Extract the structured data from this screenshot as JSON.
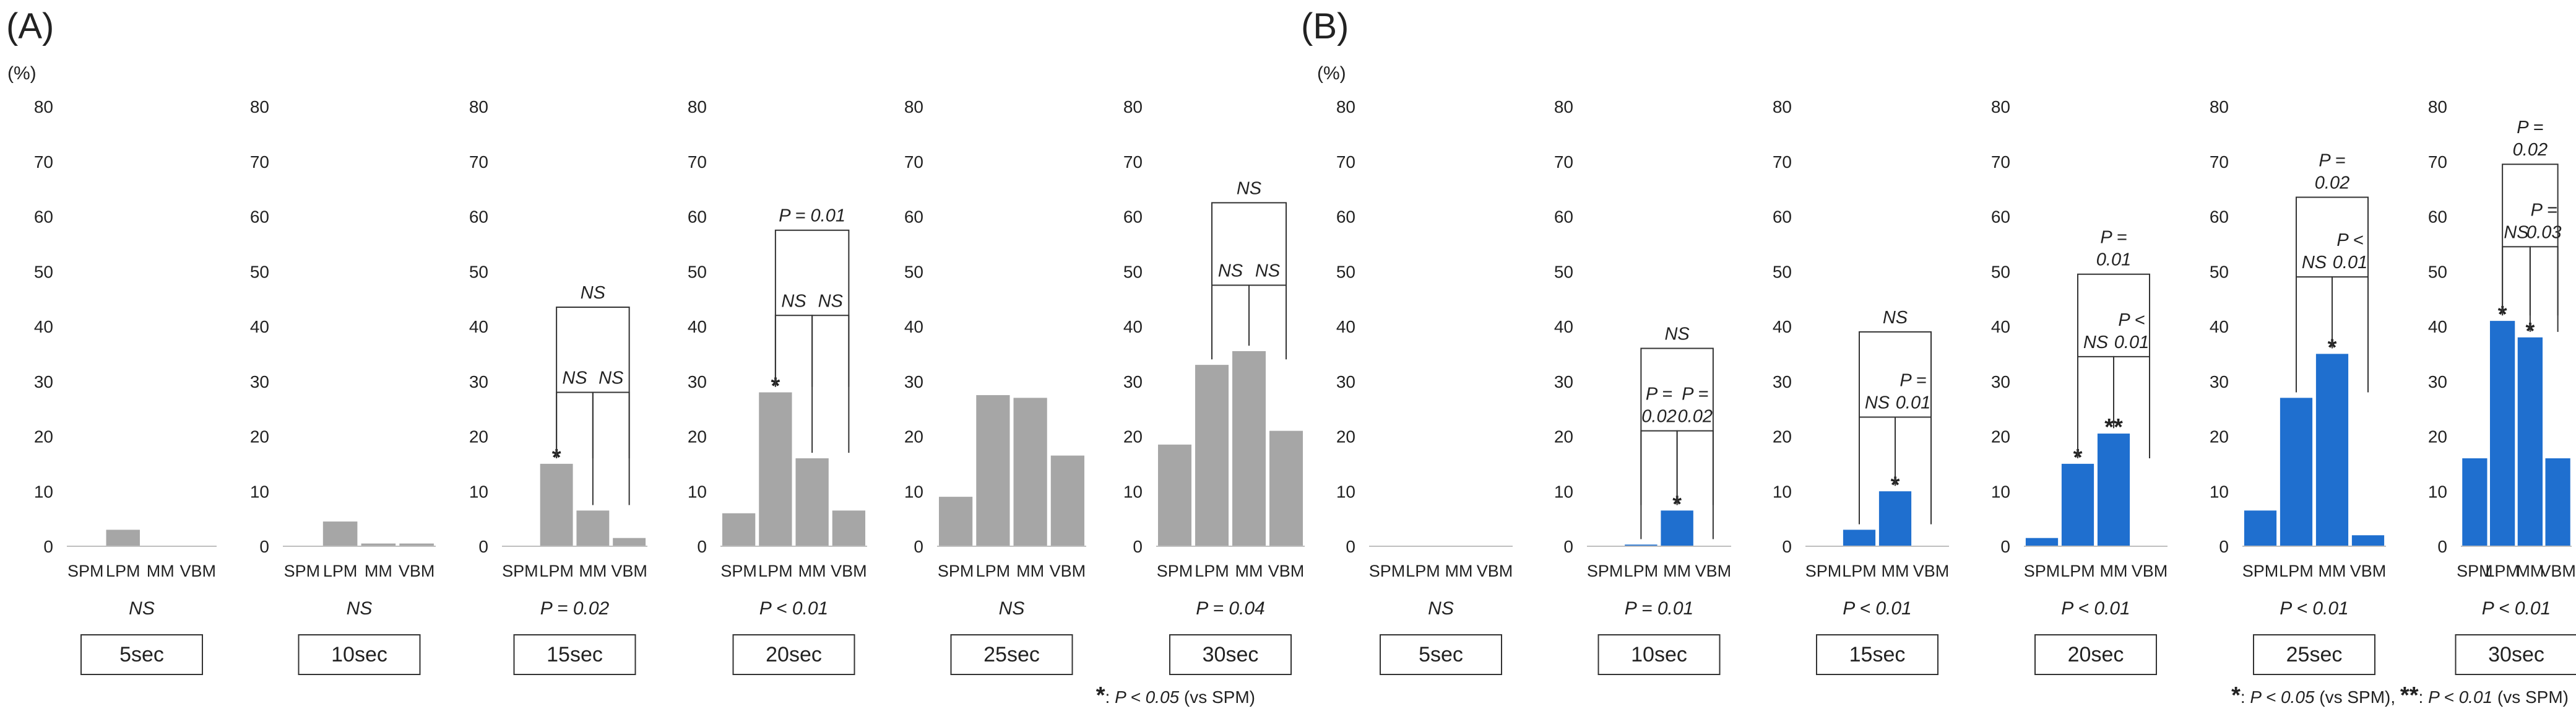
{
  "figure": {
    "yunit": "(%)",
    "ylim": [
      0,
      80
    ],
    "yticks": [
      0,
      10,
      20,
      30,
      40,
      50,
      60,
      70,
      80
    ]
  },
  "chart_data": [
    {
      "panel_label": "(A)",
      "type": "bar",
      "categories": [
        "SPM",
        "LPM",
        "MM",
        "VBM"
      ],
      "bar_color": "#a6a6a6",
      "legend": {
        "marker": "*",
        "sep": ": ",
        "text": "P < 0.05",
        "suffix": " (vs SPM)"
      },
      "charts": [
        {
          "title": "5sec",
          "values": [
            0,
            3,
            0,
            0
          ],
          "ptext": "NS",
          "stars": [
            "",
            "",
            "",
            ""
          ],
          "brackets": []
        },
        {
          "title": "10sec",
          "values": [
            0,
            4.5,
            0.5,
            0.5
          ],
          "ptext": "NS",
          "stars": [
            "",
            "",
            "",
            ""
          ],
          "brackets": []
        },
        {
          "title": "15sec",
          "values": [
            0,
            15,
            6.5,
            1.5
          ],
          "ptext": "P = 0.02",
          "stars": [
            "",
            "*",
            "",
            ""
          ],
          "brackets": [
            {
              "from": 1,
              "to": 2,
              "y": 28,
              "label": "NS"
            },
            {
              "from": 2,
              "to": 3,
              "y": 28,
              "label": "NS"
            },
            {
              "from": 1,
              "to": 3,
              "y": 43.5,
              "label": "NS"
            }
          ]
        },
        {
          "title": "20sec",
          "values": [
            6,
            28,
            16,
            6.5
          ],
          "ptext": "P < 0.01",
          "stars": [
            "",
            "*",
            "",
            ""
          ],
          "brackets": [
            {
              "from": 1,
              "to": 2,
              "y": 42,
              "label": "NS"
            },
            {
              "from": 2,
              "to": 3,
              "y": 42,
              "label": "NS"
            },
            {
              "from": 1,
              "to": 3,
              "y": 57.5,
              "label": "P = 0.01"
            }
          ]
        },
        {
          "title": "25sec",
          "values": [
            9,
            27.5,
            27,
            16.5
          ],
          "ptext": "NS",
          "stars": [
            "",
            "",
            "",
            ""
          ],
          "brackets": []
        },
        {
          "title": "30sec",
          "values": [
            18.5,
            33,
            35.5,
            21
          ],
          "ptext": "P = 0.04",
          "stars": [
            "",
            "",
            "",
            ""
          ],
          "brackets": [
            {
              "from": 1,
              "to": 2,
              "y": 47.5,
              "label": "NS"
            },
            {
              "from": 2,
              "to": 3,
              "y": 47.5,
              "label": "NS"
            },
            {
              "from": 1,
              "to": 3,
              "y": 62.5,
              "label": "NS"
            }
          ]
        }
      ]
    },
    {
      "panel_label": "(B)",
      "type": "bar",
      "categories": [
        "SPM",
        "LPM",
        "MM",
        "VBM"
      ],
      "bar_color": "#1f6fcf",
      "legend": {
        "marker": "*",
        "sep": ": ",
        "text": "P < 0.05",
        "suffix": " (vs SPM), ",
        "marker2": "**",
        "text2": "P < 0.01",
        "suffix2": " (vs SPM)"
      },
      "charts": [
        {
          "title": "5sec",
          "values": [
            0,
            0,
            0,
            0
          ],
          "ptext": "NS",
          "stars": [
            "",
            "",
            "",
            ""
          ],
          "brackets": []
        },
        {
          "title": "10sec",
          "values": [
            0,
            0.3,
            6.5,
            0
          ],
          "ptext": "P = 0.01",
          "stars": [
            "",
            "",
            "*",
            ""
          ],
          "brackets": [
            {
              "from": 1,
              "to": 2,
              "y": 21,
              "label": "P =\n0.02"
            },
            {
              "from": 2,
              "to": 3,
              "y": 21,
              "label": "P =\n0.02"
            },
            {
              "from": 1,
              "to": 3,
              "y": 36,
              "label": "NS"
            }
          ]
        },
        {
          "title": "15sec",
          "values": [
            0,
            3,
            10,
            0
          ],
          "ptext": "P < 0.01",
          "stars": [
            "",
            "",
            "*",
            ""
          ],
          "brackets": [
            {
              "from": 1,
              "to": 2,
              "y": 23.5,
              "label": "NS"
            },
            {
              "from": 2,
              "to": 3,
              "y": 23.5,
              "label": "P =\n0.01"
            },
            {
              "from": 1,
              "to": 3,
              "y": 39,
              "label": "NS"
            }
          ]
        },
        {
          "title": "20sec",
          "values": [
            1.5,
            15,
            20.5,
            0
          ],
          "ptext": "P < 0.01",
          "stars": [
            "",
            "*",
            "**",
            ""
          ],
          "brackets": [
            {
              "from": 1,
              "to": 2,
              "y": 34.5,
              "label": "NS"
            },
            {
              "from": 2,
              "to": 3,
              "y": 34.5,
              "label": "P <\n0.01"
            },
            {
              "from": 1,
              "to": 3,
              "y": 49.5,
              "label": "P =\n0.01"
            }
          ]
        },
        {
          "title": "25sec",
          "values": [
            6.5,
            27,
            35,
            2
          ],
          "ptext": "P < 0.01",
          "stars": [
            "",
            "",
            "*",
            ""
          ],
          "brackets": [
            {
              "from": 1,
              "to": 2,
              "y": 49,
              "label": "NS"
            },
            {
              "from": 2,
              "to": 3,
              "y": 49,
              "label": "P <\n0.01"
            },
            {
              "from": 1,
              "to": 3,
              "y": 63.5,
              "label": "P =\n0.02"
            }
          ]
        },
        {
          "title": "30sec",
          "values": [
            16,
            41,
            38,
            16
          ],
          "ptext": "P < 0.01",
          "stars": [
            "",
            "*",
            "*",
            ""
          ],
          "brackets": [
            {
              "from": 1,
              "to": 2,
              "y": 54.5,
              "label": "NS"
            },
            {
              "from": 2,
              "to": 3,
              "y": 54.5,
              "label": "P =\n0.03"
            },
            {
              "from": 1,
              "to": 3,
              "y": 69.5,
              "label": "P =\n0.02"
            }
          ]
        }
      ]
    }
  ]
}
